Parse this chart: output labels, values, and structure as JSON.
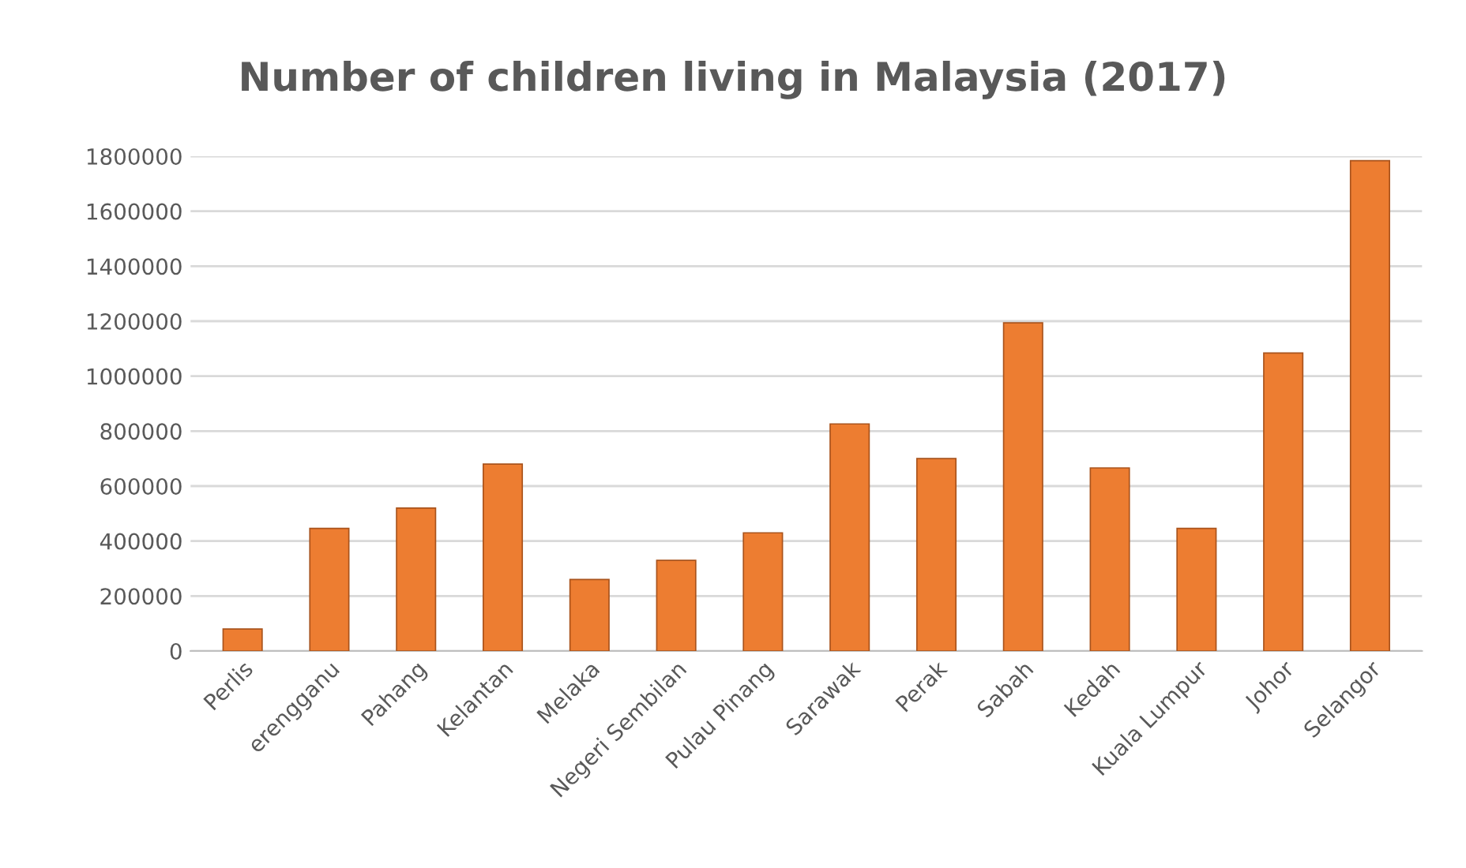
{
  "chart_data": {
    "type": "bar",
    "title": "Number of children living in Malaysia (2017)",
    "categories": [
      "Perlis",
      "erengganu",
      "Pahang",
      "Kelantan",
      "Melaka",
      "Negeri Sembilan",
      "Pulau Pinang",
      "Sarawak",
      "Perak",
      "Sabah",
      "Kedah",
      "Kuala Lumpur",
      "Johor",
      "Selangor"
    ],
    "values": [
      80000,
      446000,
      520000,
      680000,
      260000,
      330000,
      430000,
      826000,
      700000,
      1194000,
      666000,
      446000,
      1084000,
      1784000
    ],
    "color": "#ed7d31",
    "ylim": [
      0,
      1800000
    ],
    "yticks": [
      0,
      200000,
      400000,
      600000,
      800000,
      1000000,
      1200000,
      1400000,
      1600000,
      1800000
    ],
    "grid": "y"
  }
}
